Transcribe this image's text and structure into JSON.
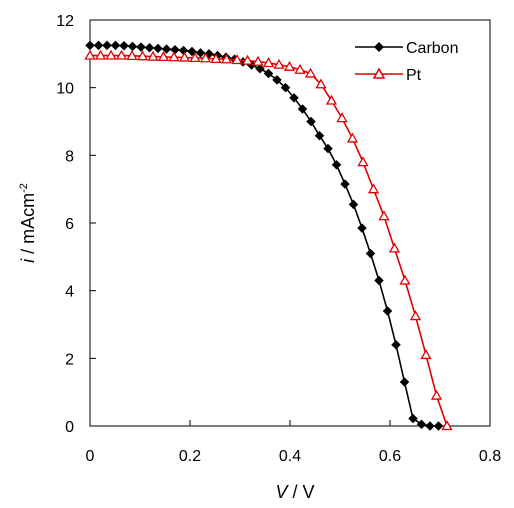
{
  "chart_data": {
    "type": "line",
    "title": "",
    "xlabel": {
      "var": "V",
      "rest": " / V"
    },
    "ylabel": {
      "var": "i",
      "rest": " / mAcm",
      "sup": "-2"
    },
    "xlim": [
      0,
      0.8
    ],
    "ylim": [
      0,
      12
    ],
    "xticks": [
      0,
      0.2,
      0.4,
      0.6,
      0.8
    ],
    "xtick_labels": [
      "0",
      "0.2",
      "0.4",
      "0.6",
      "0.8"
    ],
    "yticks": [
      0,
      2,
      4,
      6,
      8,
      10,
      12
    ],
    "ytick_labels": [
      "0",
      "2",
      "4",
      "6",
      "8",
      "10",
      "12"
    ],
    "grid": false,
    "legend_position": "top-right",
    "series": [
      {
        "name": "Carbon",
        "color": "#000000",
        "marker": "diamond",
        "x": [
          0,
          0.017,
          0.034,
          0.051,
          0.068,
          0.085,
          0.102,
          0.119,
          0.136,
          0.153,
          0.17,
          0.187,
          0.204,
          0.221,
          0.238,
          0.255,
          0.272,
          0.289,
          0.306,
          0.323,
          0.34,
          0.357,
          0.374,
          0.391,
          0.408,
          0.425,
          0.442,
          0.459,
          0.476,
          0.493,
          0.51,
          0.527,
          0.544,
          0.561,
          0.578,
          0.595,
          0.612,
          0.629,
          0.646,
          0.663,
          0.68,
          0.697
        ],
        "y": [
          11.25,
          11.25,
          11.25,
          11.25,
          11.24,
          11.22,
          11.2,
          11.18,
          11.16,
          11.14,
          11.12,
          11.1,
          11.07,
          11.03,
          11.0,
          10.95,
          10.9,
          10.84,
          10.76,
          10.67,
          10.56,
          10.42,
          10.23,
          10.0,
          9.7,
          9.37,
          9.0,
          8.58,
          8.2,
          7.72,
          7.15,
          6.55,
          5.85,
          5.1,
          4.3,
          3.4,
          2.4,
          1.3,
          0.22,
          0.05,
          0.0,
          0.0
        ]
      },
      {
        "name": "Pt",
        "color": "#e00000",
        "marker": "triangle-open",
        "x": [
          0,
          0.021,
          0.042,
          0.063,
          0.084,
          0.105,
          0.126,
          0.147,
          0.168,
          0.189,
          0.21,
          0.231,
          0.252,
          0.273,
          0.294,
          0.315,
          0.336,
          0.357,
          0.378,
          0.399,
          0.42,
          0.441,
          0.462,
          0.483,
          0.504,
          0.525,
          0.546,
          0.567,
          0.588,
          0.609,
          0.63,
          0.651,
          0.672,
          0.693,
          0.714
        ],
        "y": [
          10.95,
          10.95,
          10.95,
          10.95,
          10.94,
          10.93,
          10.92,
          10.91,
          10.9,
          10.89,
          10.88,
          10.87,
          10.85,
          10.84,
          10.82,
          10.8,
          10.77,
          10.73,
          10.68,
          10.62,
          10.53,
          10.42,
          10.1,
          9.62,
          9.1,
          8.5,
          7.8,
          7.0,
          6.2,
          5.25,
          4.3,
          3.25,
          2.1,
          0.9,
          0.0
        ]
      }
    ]
  }
}
